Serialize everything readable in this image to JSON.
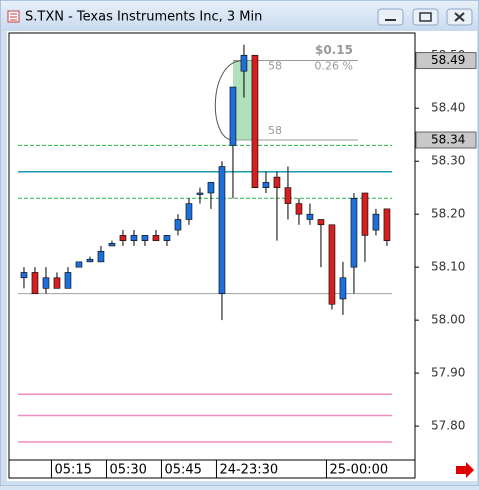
{
  "window_title": "S.TXN - Texas Instruments Inc, 3 Min",
  "chart_data": {
    "type": "candlestick",
    "xlim": [
      -1.27,
      35.55
    ],
    "xticks": [
      {
        "value": 3,
        "label": "05:15"
      },
      {
        "value": 8,
        "label": "05:30"
      },
      {
        "value": 13,
        "label": "05:45"
      },
      {
        "value": 18,
        "label": "24-23:30"
      },
      {
        "value": 28,
        "label": "25-00:00"
      }
    ],
    "ylim": [
      57.736,
      58.542
    ],
    "yticks": [
      {
        "value": 58.5,
        "label": "58.50"
      },
      {
        "value": 58.4,
        "label": "58.40"
      },
      {
        "value": 58.3,
        "label": "58.30"
      },
      {
        "value": 58.2,
        "label": "58.20"
      },
      {
        "value": 58.1,
        "label": "58.10"
      },
      {
        "value": 58.0,
        "label": "58.00"
      },
      {
        "value": 57.9,
        "label": "57.90"
      },
      {
        "value": 57.8,
        "label": "57.80"
      }
    ],
    "up_color": "#1e6fd9",
    "down_color": "#d42020",
    "open": [
      58.08,
      58.09,
      58.06,
      58.08,
      58.06,
      58.1,
      58.11,
      58.11,
      58.14,
      58.16,
      58.15,
      58.15,
      58.16,
      58.15,
      58.17,
      58.19,
      58.24,
      58.24,
      58.05,
      58.33,
      58.47,
      58.5,
      58.25,
      58.27,
      58.25,
      58.22,
      58.19,
      58.19,
      58.18,
      58.04,
      58.1,
      58.24,
      58.17,
      58.21
    ],
    "high": [
      58.1,
      58.1,
      58.1,
      58.09,
      58.1,
      58.11,
      58.12,
      58.14,
      58.15,
      58.17,
      58.17,
      58.16,
      58.17,
      58.16,
      58.2,
      58.23,
      58.25,
      58.26,
      58.3,
      58.44,
      58.52,
      58.5,
      58.28,
      58.28,
      58.29,
      58.23,
      58.22,
      58.19,
      58.18,
      58.11,
      58.24,
      58.24,
      58.21,
      58.21
    ],
    "low": [
      58.06,
      58.05,
      58.05,
      58.06,
      58.06,
      58.1,
      58.11,
      58.11,
      58.14,
      58.14,
      58.14,
      58.14,
      58.15,
      58.14,
      58.16,
      58.18,
      58.22,
      58.21,
      58.0,
      58.23,
      58.42,
      58.25,
      58.24,
      58.15,
      58.19,
      58.18,
      58.18,
      58.1,
      58.02,
      58.01,
      58.05,
      58.11,
      58.16,
      58.14
    ],
    "close": [
      58.09,
      58.05,
      58.08,
      58.06,
      58.09,
      58.11,
      58.115,
      58.13,
      58.145,
      58.15,
      58.16,
      58.16,
      58.15,
      58.16,
      58.19,
      58.22,
      58.24,
      58.26,
      58.29,
      58.44,
      58.5,
      58.25,
      58.26,
      58.25,
      58.22,
      58.2,
      58.2,
      58.18,
      58.03,
      58.08,
      58.23,
      58.16,
      58.2,
      58.15
    ],
    "levels": [
      {
        "value": 58.33,
        "color": "#2db34a",
        "style": "dashed"
      },
      {
        "value": 58.23,
        "color": "#2db34a",
        "style": "dashed"
      },
      {
        "value": 58.28,
        "color": "#1a9bb0",
        "style": "solid"
      },
      {
        "value": 58.05,
        "color": "#a0a0a0",
        "style": "solid"
      },
      {
        "value": 57.86,
        "color": "#f08cc0",
        "style": "solid"
      },
      {
        "value": 57.82,
        "color": "#f08cc0",
        "style": "solid"
      },
      {
        "value": 57.77,
        "color": "#f08cc0",
        "style": "solid"
      }
    ],
    "price_markers": [
      {
        "value": 58.49,
        "label": "58.49"
      },
      {
        "value": 58.34,
        "label": "58.34"
      }
    ],
    "measure": {
      "from": 58.34,
      "to": 58.49,
      "change_label": "$0.15",
      "percent_label": "0.26 %",
      "start_label": "58",
      "end_label": "58"
    }
  }
}
